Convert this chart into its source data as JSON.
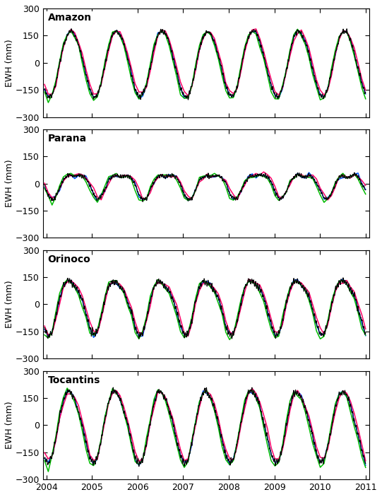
{
  "basins": [
    "Amazon",
    "Parana",
    "Orinoco",
    "Tocantins"
  ],
  "ylim": [
    -300,
    300
  ],
  "yticks": [
    -300,
    -150,
    0,
    150,
    300
  ],
  "xticks": [
    2004,
    2005,
    2006,
    2007,
    2008,
    2009,
    2010,
    2011
  ],
  "xlim": [
    2003.92,
    2011.08
  ],
  "ylabel": "EWH (mm)",
  "colors": {
    "CSR": "#0055ff",
    "GFZ": "#ff0066",
    "JPL": "#00bb00",
    "Kalman": "#000000"
  },
  "line_widths": {
    "CSR": 1.1,
    "GFZ": 1.1,
    "JPL": 1.1,
    "Kalman": 0.8
  },
  "figsize": [
    5.41,
    7.03
  ],
  "dpi": 100,
  "background_color": "#ffffff",
  "label_fontsize": 9,
  "title_fontsize": 10,
  "tick_fontsize": 9
}
